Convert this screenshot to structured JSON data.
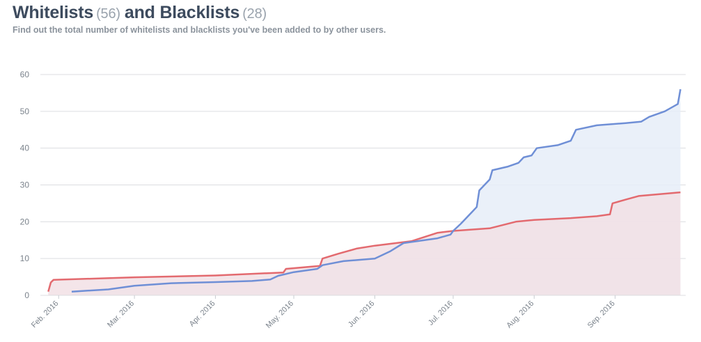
{
  "header": {
    "whitelists_label": "Whitelists",
    "whitelists_count": "(56)",
    "blacklists_label": "and Blacklists",
    "blacklists_count": "(28)",
    "subtitle": "Find out the total number of whitelists and blacklists you've been added to by other users."
  },
  "colors": {
    "whitelists": "#6f8fd6",
    "blacklists": "#e36a6f",
    "whitelists_fill": "#e6edf8",
    "blacklists_fill": "#f2e0e5",
    "grid": "#dcdde0",
    "tick_text": "#7b838c"
  },
  "chart_data": {
    "type": "area",
    "xlabel": "",
    "ylabel": "",
    "ylim": [
      0,
      60
    ],
    "yticks": [
      "0",
      "10",
      "20",
      "30",
      "40",
      "50",
      "60"
    ],
    "x_tick_labels": [
      "Feb. 2016",
      "Mar. 2016",
      "Apr. 2016",
      "May. 2016",
      "Jun. 2016",
      "Jul. 2016",
      "Aug. 2016",
      "Sep. 2016"
    ],
    "grid": true,
    "series": [
      {
        "key": "whitelists",
        "points": [
          [
            "2016-02-06",
            1
          ],
          [
            "2016-02-20",
            1.6
          ],
          [
            "2016-03-01",
            2.6
          ],
          [
            "2016-03-15",
            3.3
          ],
          [
            "2016-04-01",
            3.6
          ],
          [
            "2016-04-15",
            3.9
          ],
          [
            "2016-04-22",
            4.3
          ],
          [
            "2016-04-25",
            5.3
          ],
          [
            "2016-05-01",
            6.3
          ],
          [
            "2016-05-10",
            7.2
          ],
          [
            "2016-05-12",
            8.2
          ],
          [
            "2016-05-20",
            9.3
          ],
          [
            "2016-06-01",
            10.0
          ],
          [
            "2016-06-07",
            12.0
          ],
          [
            "2016-06-12",
            14.2
          ],
          [
            "2016-06-25",
            15.5
          ],
          [
            "2016-06-30",
            16.5
          ],
          [
            "2016-07-01",
            17.5
          ],
          [
            "2016-07-04",
            19.5
          ],
          [
            "2016-07-08",
            22.5
          ],
          [
            "2016-07-10",
            24.0
          ],
          [
            "2016-07-11",
            28.5
          ],
          [
            "2016-07-13",
            30.0
          ],
          [
            "2016-07-15",
            31.5
          ],
          [
            "2016-07-16",
            34.0
          ],
          [
            "2016-07-22",
            35.0
          ],
          [
            "2016-07-26",
            36.0
          ],
          [
            "2016-07-28",
            37.5
          ],
          [
            "2016-07-31",
            38.0
          ],
          [
            "2016-08-02",
            40.0
          ],
          [
            "2016-08-10",
            40.8
          ],
          [
            "2016-08-15",
            42.0
          ],
          [
            "2016-08-17",
            45.0
          ],
          [
            "2016-08-25",
            46.2
          ],
          [
            "2016-09-05",
            46.8
          ],
          [
            "2016-09-11",
            47.2
          ],
          [
            "2016-09-14",
            48.5
          ],
          [
            "2016-09-20",
            50.0
          ],
          [
            "2016-09-25",
            52.0
          ],
          [
            "2016-09-26",
            56.0
          ]
        ]
      },
      {
        "key": "blacklists",
        "points": [
          [
            "2016-01-28",
            1
          ],
          [
            "2016-01-29",
            3.5
          ],
          [
            "2016-01-30",
            4.2
          ],
          [
            "2016-03-01",
            4.9
          ],
          [
            "2016-04-01",
            5.4
          ],
          [
            "2016-04-27",
            6.2
          ],
          [
            "2016-04-28",
            7.2
          ],
          [
            "2016-05-11",
            8.0
          ],
          [
            "2016-05-12",
            10.0
          ],
          [
            "2016-05-18",
            11.3
          ],
          [
            "2016-05-25",
            12.7
          ],
          [
            "2016-06-01",
            13.5
          ],
          [
            "2016-06-15",
            14.7
          ],
          [
            "2016-06-25",
            17.0
          ],
          [
            "2016-07-01",
            17.5
          ],
          [
            "2016-07-15",
            18.2
          ],
          [
            "2016-07-25",
            20.0
          ],
          [
            "2016-08-01",
            20.5
          ],
          [
            "2016-08-15",
            21.0
          ],
          [
            "2016-08-25",
            21.5
          ],
          [
            "2016-08-30",
            22.0
          ],
          [
            "2016-08-31",
            25.0
          ],
          [
            "2016-09-05",
            26.0
          ],
          [
            "2016-09-10",
            27.0
          ],
          [
            "2016-09-26",
            28.0
          ]
        ]
      }
    ]
  }
}
